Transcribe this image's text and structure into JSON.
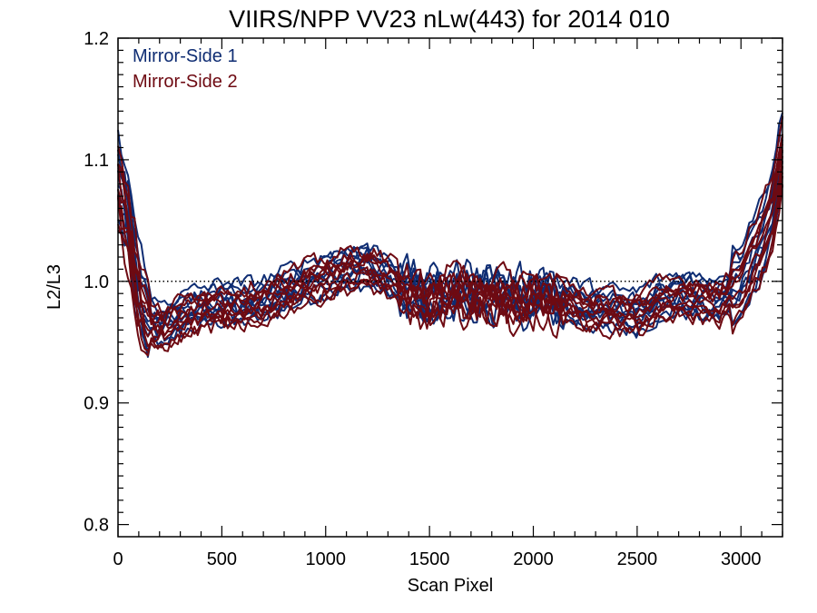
{
  "chart_data": {
    "type": "line",
    "title": "VIIRS/NPP VV23 nLw(443) for 2014 010",
    "xlabel": "Scan Pixel",
    "ylabel": "L2/L3",
    "xlim": [
      0,
      3200
    ],
    "ylim": [
      0.79,
      1.2
    ],
    "xticks": [
      0,
      500,
      1000,
      1500,
      2000,
      2500,
      3000
    ],
    "xtick_labels": [
      "0",
      "500",
      "1000",
      "1500",
      "2000",
      "2500",
      "3000"
    ],
    "yticks": [
      0.8,
      0.9,
      1.0,
      1.1,
      1.2
    ],
    "ytick_labels": [
      "0.8",
      "0.9",
      "1.0",
      "1.1",
      "1.2"
    ],
    "reference_line": 1.0,
    "grid": false,
    "legend_position": "top-left",
    "x": [
      0,
      50,
      100,
      150,
      200,
      300,
      400,
      500,
      600,
      700,
      800,
      900,
      1000,
      1100,
      1200,
      1300,
      1400,
      1500,
      1600,
      1700,
      1800,
      1900,
      2000,
      2100,
      2200,
      2300,
      2400,
      2500,
      2600,
      2700,
      2800,
      2900,
      3000,
      3050,
      3100,
      3150,
      3200
    ],
    "series": [
      {
        "name": "Mirror-Side 1",
        "color": "#0f2d73",
        "curves": 10,
        "values": [
          1.08,
          1.05,
          0.99,
          0.968,
          0.965,
          0.972,
          0.978,
          0.982,
          0.981,
          0.985,
          0.992,
          1.0,
          1.005,
          1.01,
          1.012,
          1.005,
          0.992,
          0.985,
          0.99,
          0.992,
          0.99,
          0.985,
          0.988,
          0.987,
          0.982,
          0.978,
          0.976,
          0.975,
          0.985,
          0.99,
          0.987,
          0.985,
          1.0,
          1.02,
          1.035,
          1.06,
          1.11
        ]
      },
      {
        "name": "Mirror-Side 2",
        "color": "#6e0a12",
        "curves": 10,
        "values": [
          1.075,
          1.045,
          0.985,
          0.962,
          0.96,
          0.968,
          0.975,
          0.978,
          0.978,
          0.982,
          0.99,
          0.997,
          1.002,
          1.008,
          1.01,
          1.003,
          0.988,
          0.982,
          0.987,
          0.99,
          0.988,
          0.983,
          0.985,
          0.984,
          0.98,
          0.975,
          0.973,
          0.972,
          0.982,
          0.986,
          0.984,
          0.982,
          0.995,
          1.015,
          1.03,
          1.055,
          1.105
        ]
      }
    ]
  }
}
